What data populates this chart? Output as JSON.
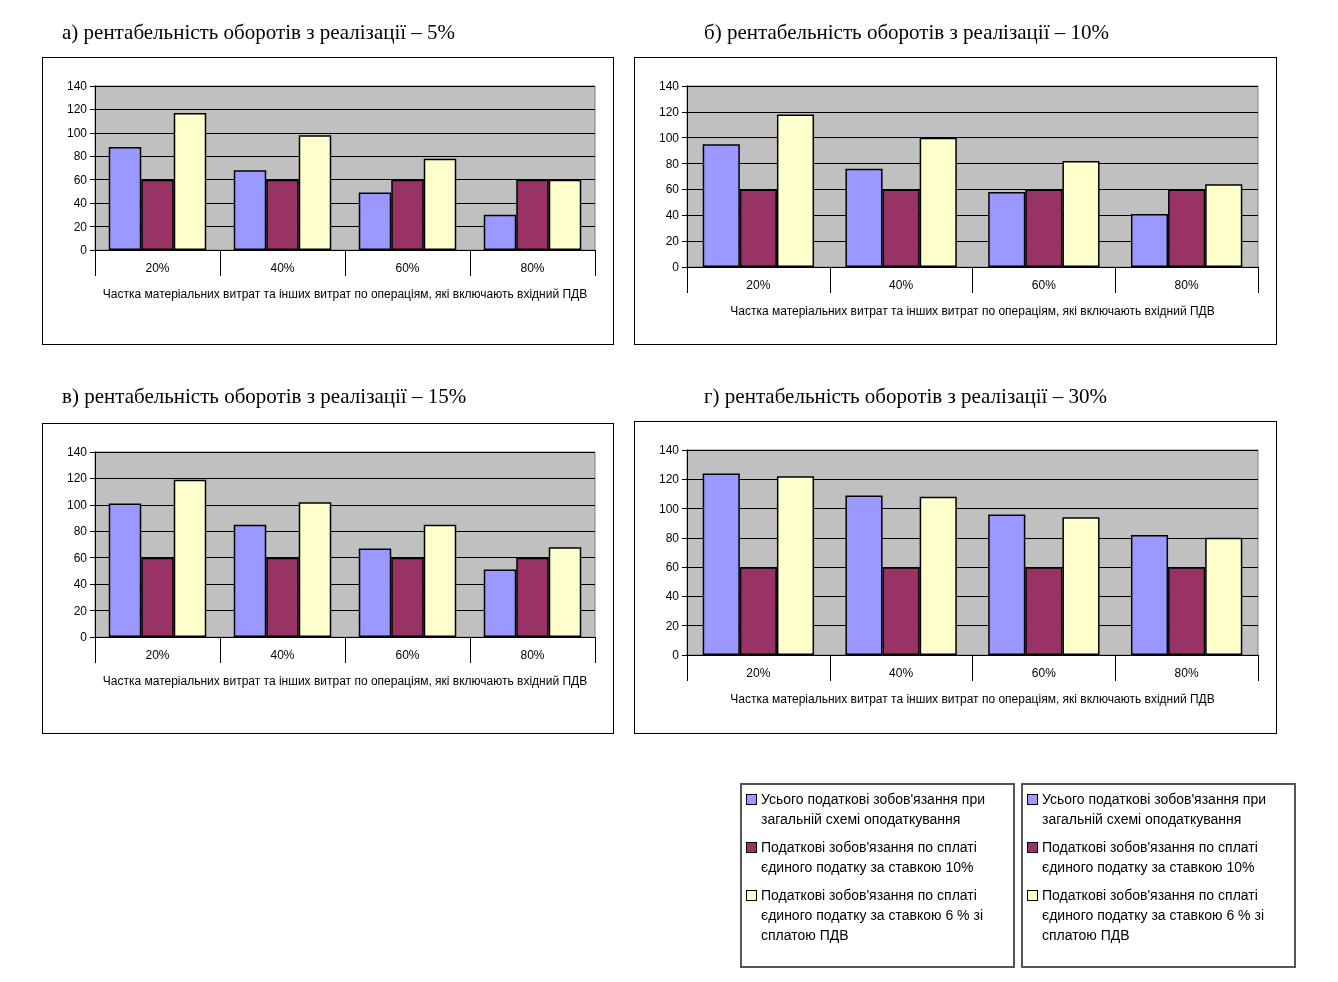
{
  "chart_data": [
    {
      "type": "bar",
      "title": "а) рентабельність оборотів з реалізації – 5%",
      "xlabel": "Частка матеріальних витрат та інших витрат по операціям, які включають вхідний ПДВ",
      "categories": [
        "20%",
        "40%",
        "60%",
        "80%"
      ],
      "ylim": [
        0,
        140
      ],
      "yticks": [
        0,
        20,
        40,
        60,
        80,
        100,
        120,
        140
      ],
      "grid": "y",
      "legend": false,
      "series": [
        {
          "color": "#9999ff",
          "values": [
            88,
            68,
            49,
            30
          ]
        },
        {
          "color": "#993366",
          "values": [
            60,
            60,
            60,
            60
          ]
        },
        {
          "color": "#ffffcc",
          "values": [
            117,
            98,
            78,
            60
          ]
        }
      ]
    },
    {
      "type": "bar",
      "title": "б) рентабельність оборотів з реалізації – 10%",
      "xlabel": "Частка матеріальних витрат та інших витрат по операціям, які включають вхідний ПДВ",
      "categories": [
        "20%",
        "40%",
        "60%",
        "80%"
      ],
      "ylim": [
        0,
        140
      ],
      "yticks": [
        0,
        20,
        40,
        60,
        80,
        100,
        120,
        140
      ],
      "grid": "y",
      "legend": false,
      "series": [
        {
          "color": "#9999ff",
          "values": [
            95,
            76,
            58,
            41
          ]
        },
        {
          "color": "#993366",
          "values": [
            60,
            60,
            60,
            60
          ]
        },
        {
          "color": "#ffffcc",
          "values": [
            118,
            100,
            82,
            64
          ]
        }
      ]
    },
    {
      "type": "bar",
      "title": "в) рентабельність оборотів з реалізації – 15%",
      "xlabel": "Частка матеріальних витрат та інших витрат по операціям, які включають вхідний ПДВ",
      "categories": [
        "20%",
        "40%",
        "60%",
        "80%"
      ],
      "ylim": [
        0,
        140
      ],
      "yticks": [
        0,
        20,
        40,
        60,
        80,
        100,
        120,
        140
      ],
      "grid": "y",
      "legend": false,
      "series": [
        {
          "color": "#9999ff",
          "values": [
            101,
            85,
            67,
            51
          ]
        },
        {
          "color": "#993366",
          "values": [
            60,
            60,
            60,
            60
          ]
        },
        {
          "color": "#ffffcc",
          "values": [
            119,
            102,
            85,
            68
          ]
        }
      ]
    },
    {
      "type": "bar",
      "title": "г) рентабельність оборотів з реалізації – 30%",
      "xlabel": "Частка матеріальних витрат та інших витрат по операціям, які включають вхідний ПДВ",
      "categories": [
        "20%",
        "40%",
        "60%",
        "80%"
      ],
      "ylim": [
        0,
        140
      ],
      "yticks": [
        0,
        20,
        40,
        60,
        80,
        100,
        120,
        140
      ],
      "grid": "y",
      "legend": "bottom",
      "series": [
        {
          "name": "Усього податкові зобов'язання при загальній схемі оподаткування",
          "color": "#9999ff",
          "values": [
            124,
            109,
            96,
            82
          ]
        },
        {
          "name": "Податкові зобов'язання по сплаті єдиного податку за ставкою 10%",
          "color": "#993366",
          "values": [
            60,
            60,
            60,
            60
          ]
        },
        {
          "name": "Податкові зобов'язання по сплаті єдиного податку за ставкою 6 % зі сплатою ПДВ",
          "color": "#ffffcc",
          "values": [
            122,
            108,
            94,
            80
          ]
        }
      ]
    }
  ]
}
